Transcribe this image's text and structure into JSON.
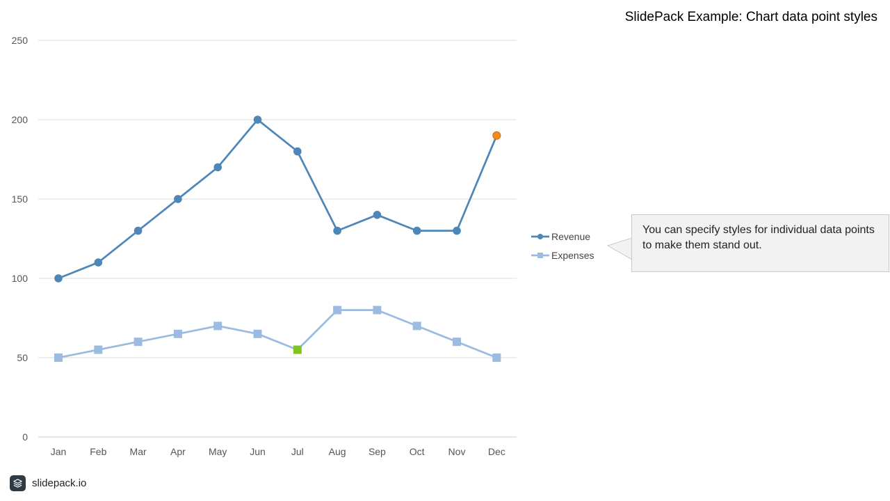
{
  "slide": {
    "title": "SlidePack Example: Chart data point styles"
  },
  "callout": {
    "text": "You can specify styles for individual data points to make them stand out."
  },
  "footer": {
    "brand": "slidepack.io",
    "logo_icon": "stacked-layers-icon"
  },
  "chart_data": {
    "type": "line",
    "categories": [
      "Jan",
      "Feb",
      "Mar",
      "Apr",
      "May",
      "Jun",
      "Jul",
      "Aug",
      "Sep",
      "Oct",
      "Nov",
      "Dec"
    ],
    "ylim": [
      0,
      250
    ],
    "yticks": [
      0,
      50,
      100,
      150,
      200,
      250
    ],
    "grid": true,
    "legend": "right",
    "series": [
      {
        "name": "Revenue",
        "marker": "circle",
        "color": "#4e86b8",
        "values": [
          100,
          110,
          130,
          150,
          170,
          200,
          180,
          130,
          140,
          130,
          130,
          190
        ],
        "highlight": {
          "index": 11,
          "color": "#f28c1e"
        }
      },
      {
        "name": "Expenses",
        "marker": "square",
        "color": "#9bbbe0",
        "values": [
          50,
          55,
          60,
          65,
          70,
          65,
          55,
          80,
          80,
          70,
          60,
          50
        ],
        "highlight": {
          "index": 6,
          "color": "#7ec61f"
        }
      }
    ]
  }
}
